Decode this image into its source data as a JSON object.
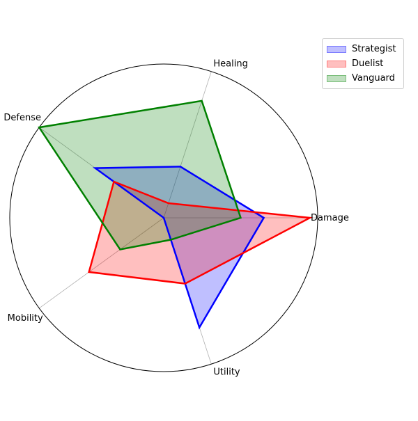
{
  "chart_data": {
    "type": "radar",
    "axes": [
      "Damage",
      "Healing",
      "Defense",
      "Mobility",
      "Utility"
    ],
    "rmax": 10,
    "grid": false,
    "legend_position": "top-right",
    "series": [
      {
        "name": "Strategist",
        "values": [
          6.5,
          3.5,
          5.5,
          0.0,
          7.5
        ],
        "color": "#0000ff"
      },
      {
        "name": "Duelist",
        "values": [
          9.5,
          1.0,
          4.0,
          6.0,
          4.5
        ],
        "color": "#ff0000"
      },
      {
        "name": "Vanguard",
        "values": [
          5.0,
          8.0,
          10.0,
          3.5,
          1.5
        ],
        "color": "#008000"
      }
    ]
  }
}
